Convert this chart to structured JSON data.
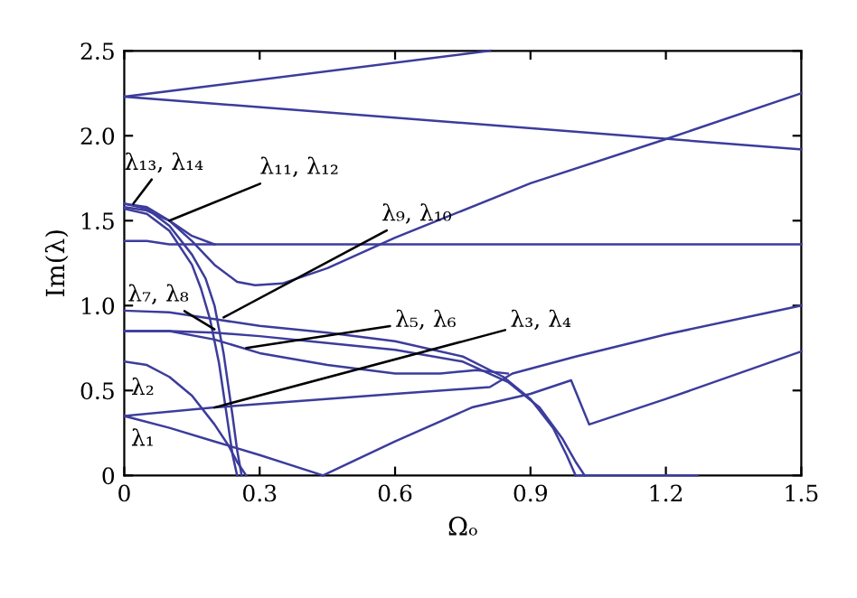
{
  "chart_data": {
    "type": "line",
    "xlabel": "Ωₒ",
    "ylabel": "Im(λ)",
    "xlim": [
      0,
      1.5
    ],
    "ylim": [
      0,
      2.5
    ],
    "xticks": [
      0,
      0.3,
      0.6,
      0.9,
      1.2,
      1.5
    ],
    "yticks": [
      0,
      0.5,
      {
        "value": 1,
        "label": "1.0"
      },
      1.5,
      {
        "value": 2,
        "label": "2.0"
      },
      2.5
    ],
    "grid": false,
    "legend": false,
    "marker": "none",
    "line_style": "solid",
    "series": [
      {
        "color": "#3c3c9c",
        "x": [
          0,
          0.81
        ],
        "values": [
          2.23,
          2.5
        ]
      },
      {
        "color": "#3c3c9c",
        "x": [
          0,
          1.5
        ],
        "values": [
          2.23,
          1.92
        ]
      },
      {
        "color": "#3c3c9c",
        "x": [
          0,
          0.05,
          0.1,
          0.15,
          0.2,
          0.25,
          0.29,
          0.35,
          0.45,
          0.6,
          0.9,
          1.2,
          1.5
        ],
        "values": [
          1.6,
          1.58,
          1.5,
          1.38,
          1.24,
          1.14,
          1.12,
          1.13,
          1.22,
          1.4,
          1.72,
          1.98,
          2.25
        ]
      },
      {
        "color": "#3c3c9c",
        "x": [
          0,
          0.05,
          0.1,
          0.2,
          1.5
        ],
        "values": [
          1.38,
          1.38,
          1.36,
          1.36,
          1.36
        ]
      },
      {
        "color": "#3c3c9c",
        "x": [
          0,
          0.05,
          0.1,
          0.15,
          0.2
        ],
        "values": [
          1.58,
          1.56,
          1.5,
          1.41,
          1.36
        ]
      },
      {
        "color": "#3c3c9c",
        "x": [
          0,
          0.05,
          0.1,
          0.15,
          0.18,
          0.2,
          0.22,
          0.24,
          0.25,
          0.26
        ],
        "values": [
          1.6,
          1.57,
          1.47,
          1.3,
          1.16,
          1.0,
          0.72,
          0.35,
          0.15,
          0.0
        ]
      },
      {
        "color": "#3c3c9c",
        "x": [
          0,
          0.05,
          0.1,
          0.15,
          0.17,
          0.19,
          0.21,
          0.23,
          0.24,
          0.25
        ],
        "values": [
          1.57,
          1.54,
          1.44,
          1.24,
          1.1,
          0.92,
          0.66,
          0.3,
          0.12,
          0.0
        ]
      },
      {
        "color": "#3c3c9c",
        "x": [
          0,
          0.1,
          0.2,
          0.3,
          0.45,
          0.6,
          0.75,
          0.84,
          0.9,
          0.95,
          0.98,
          1.0
        ],
        "values": [
          0.97,
          0.96,
          0.92,
          0.88,
          0.84,
          0.79,
          0.7,
          0.58,
          0.45,
          0.28,
          0.12,
          0.0
        ]
      },
      {
        "color": "#3c3c9c",
        "x": [
          0,
          0.1,
          0.2,
          0.3,
          0.45,
          0.6,
          0.75,
          0.85,
          0.92,
          0.97,
          1.0,
          1.02
        ],
        "values": [
          0.85,
          0.85,
          0.84,
          0.82,
          0.78,
          0.74,
          0.67,
          0.55,
          0.4,
          0.22,
          0.08,
          0.0
        ]
      },
      {
        "color": "#3c3c9c",
        "x": [
          0,
          0.05,
          0.1,
          0.15,
          0.2,
          0.23,
          0.25,
          0.27
        ],
        "values": [
          0.67,
          0.65,
          0.58,
          0.47,
          0.3,
          0.18,
          0.08,
          0.0
        ]
      },
      {
        "color": "#3c3c9c",
        "x": [
          0,
          0.1,
          0.2,
          0.3,
          0.44
        ],
        "values": [
          0.35,
          0.28,
          0.2,
          0.12,
          0.0
        ]
      },
      {
        "color": "#3c3c9c",
        "x": [
          0,
          0.2,
          0.4,
          0.6,
          0.81,
          0.86,
          1.0,
          1.2,
          1.5
        ],
        "values": [
          0.35,
          0.4,
          0.44,
          0.48,
          0.52,
          0.6,
          0.7,
          0.83,
          1.0
        ]
      },
      {
        "color": "#3c3c9c",
        "x": [
          0.44,
          0.6,
          0.77,
          0.9,
          0.99,
          1.03,
          1.2,
          1.5
        ],
        "values": [
          0.0,
          0.2,
          0.4,
          0.48,
          0.56,
          0.3,
          0.45,
          0.73
        ]
      },
      {
        "color": "#3c3c9c",
        "x": [
          0,
          0.1,
          0.2,
          0.3,
          0.45,
          0.6,
          0.7,
          0.78,
          0.85
        ],
        "values": [
          0.85,
          0.85,
          0.8,
          0.72,
          0.65,
          0.6,
          0.6,
          0.62,
          0.6
        ]
      },
      {
        "color": "#3c3c9c",
        "x": [
          1.0,
          1.27
        ],
        "values": [
          0.0,
          0.0
        ]
      }
    ],
    "annotations": [
      {
        "text": "λ₁₃, λ₁₄",
        "x": 0.02,
        "y": 1.6
      },
      {
        "text": "λ₁₁, λ₁₂",
        "x": 0.1,
        "y": 1.5
      },
      {
        "text": "λ₉, λ₁₀",
        "x": 0.22,
        "y": 0.93
      },
      {
        "text": "λ₇, λ₈",
        "x": 0.2,
        "y": 0.86
      },
      {
        "text": "λ₅, λ₆",
        "x": 0.27,
        "y": 0.75
      },
      {
        "text": "λ₃, λ₄",
        "x": 0.2,
        "y": 0.4
      },
      "λ₂",
      "λ₁"
    ]
  }
}
